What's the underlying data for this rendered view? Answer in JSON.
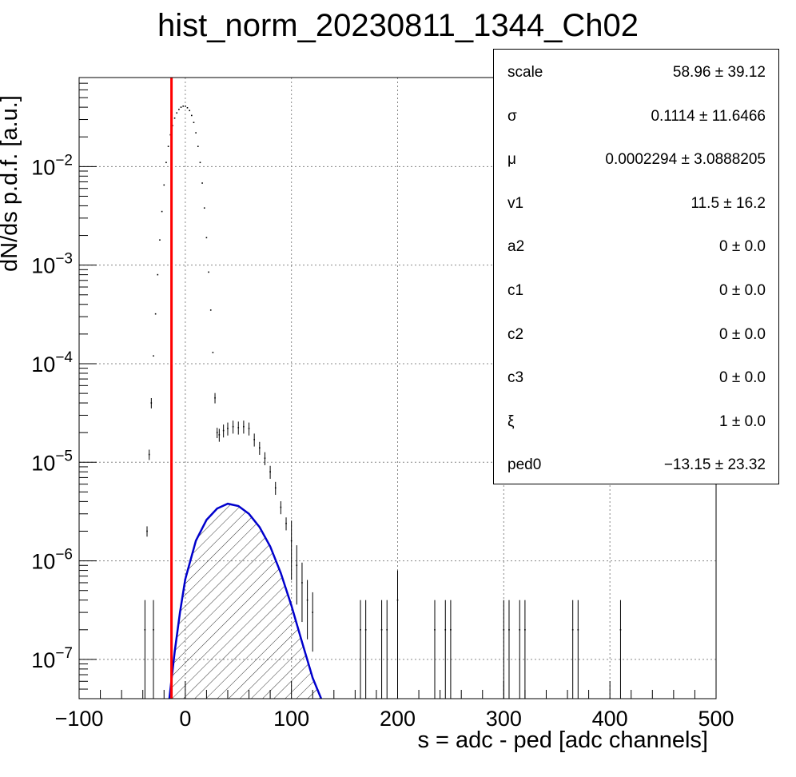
{
  "chart_data": {
    "type": "scatter",
    "title": "hist_norm_20230811_1344_Ch02",
    "xlabel": "s = adc - ped [adc channels]",
    "ylabel": "dN/ds p.d.f. [a.u.]",
    "xlim": [
      -100,
      500
    ],
    "ylim": [
      4e-08,
      0.08
    ],
    "yscale": "log",
    "grid": true,
    "x_ticks": [
      "−100",
      "0",
      "100",
      "200",
      "300",
      "400",
      "500"
    ],
    "y_ticks": [
      {
        "base": "10",
        "exp": "−7"
      },
      {
        "base": "10",
        "exp": "−6"
      },
      {
        "base": "10",
        "exp": "−5"
      },
      {
        "base": "10",
        "exp": "−4"
      },
      {
        "base": "10",
        "exp": "−3"
      },
      {
        "base": "10",
        "exp": "−2"
      }
    ],
    "series": [
      {
        "kind": "histogram",
        "color": "#000000",
        "pedestal_points": [
          [
            -36,
            2e-06
          ],
          [
            -34,
            1.2e-05
          ],
          [
            -32,
            4e-05
          ],
          [
            -30,
            0.00012
          ],
          [
            -28,
            0.00032
          ],
          [
            -26,
            0.0008
          ],
          [
            -24,
            0.0018
          ],
          [
            -22,
            0.0035
          ],
          [
            -20,
            0.0065
          ],
          [
            -18,
            0.011
          ],
          [
            -16,
            0.016
          ],
          [
            -14,
            0.021
          ],
          [
            -12,
            0.026
          ],
          [
            -10,
            0.031
          ],
          [
            -8,
            0.035
          ],
          [
            -6,
            0.038
          ],
          [
            -4,
            0.04
          ],
          [
            -2,
            0.041
          ],
          [
            0,
            0.041
          ],
          [
            2,
            0.0395
          ],
          [
            4,
            0.037
          ],
          [
            6,
            0.033
          ],
          [
            8,
            0.028
          ],
          [
            10,
            0.022
          ],
          [
            12,
            0.016
          ],
          [
            14,
            0.011
          ],
          [
            16,
            0.0068
          ],
          [
            18,
            0.0038
          ],
          [
            20,
            0.0019
          ],
          [
            22,
            0.00085
          ],
          [
            24,
            0.00035
          ],
          [
            26,
            0.00013
          ],
          [
            28,
            4.5e-05
          ],
          [
            30,
            2e-05
          ]
        ],
        "shoulder_points": [
          [
            32,
            1.9e-05
          ],
          [
            36,
            2.1e-05
          ],
          [
            40,
            2.2e-05
          ],
          [
            45,
            2.3e-05
          ],
          [
            50,
            2.25e-05
          ],
          [
            55,
            2.3e-05
          ],
          [
            60,
            2.2e-05
          ],
          [
            65,
            1.7e-05
          ],
          [
            70,
            1.4e-05
          ],
          [
            75,
            1.1e-05
          ],
          [
            80,
            8e-06
          ],
          [
            85,
            5.5e-06
          ],
          [
            90,
            3.5e-06
          ],
          [
            95,
            2.4e-06
          ],
          [
            100,
            1.6e-06
          ],
          [
            105,
            9e-07
          ],
          [
            110,
            6e-07
          ],
          [
            115,
            4e-07
          ],
          [
            120,
            3e-07
          ]
        ],
        "isolated_points": [
          [
            -38,
            2e-07
          ],
          [
            -30,
            2e-07
          ],
          [
            165,
            2e-07
          ],
          [
            170,
            2e-07
          ],
          [
            185,
            2e-07
          ],
          [
            190,
            2e-07
          ],
          [
            200,
            4e-07
          ],
          [
            235,
            2e-07
          ],
          [
            245,
            2e-07
          ],
          [
            250,
            2e-07
          ],
          [
            300,
            2e-07
          ],
          [
            305,
            2e-07
          ],
          [
            315,
            2e-07
          ],
          [
            320,
            2e-07
          ],
          [
            365,
            2e-07
          ],
          [
            370,
            2e-07
          ],
          [
            410,
            2e-07
          ]
        ]
      },
      {
        "kind": "line",
        "color": "#ff0000",
        "points": [
          [
            -13,
            4e-08
          ],
          [
            -13,
            0.08
          ]
        ]
      },
      {
        "kind": "hatched-area",
        "color": "#0000cc",
        "points": [
          [
            -15,
            4e-08
          ],
          [
            -10,
            1.2e-07
          ],
          [
            -5,
            3e-07
          ],
          [
            0,
            6.5e-07
          ],
          [
            10,
            1.6e-06
          ],
          [
            20,
            2.6e-06
          ],
          [
            30,
            3.4e-06
          ],
          [
            40,
            3.8e-06
          ],
          [
            50,
            3.6e-06
          ],
          [
            60,
            3e-06
          ],
          [
            70,
            2.2e-06
          ],
          [
            80,
            1.4e-06
          ],
          [
            90,
            7.5e-07
          ],
          [
            100,
            3.5e-07
          ],
          [
            110,
            1.5e-07
          ],
          [
            120,
            6.5e-08
          ],
          [
            128,
            4e-08
          ]
        ]
      }
    ]
  },
  "stats": [
    {
      "name": "scale",
      "value": "58.96 ± 39.12"
    },
    {
      "name": "σ",
      "value": "0.1114 ± 11.6466"
    },
    {
      "name": "μ",
      "value": "0.0002294 ± 3.0888205"
    },
    {
      "name": "v1",
      "value": "11.5 ± 16.2"
    },
    {
      "name": "a2",
      "value": "0 ± 0.0"
    },
    {
      "name": "c1",
      "value": "0 ± 0.0"
    },
    {
      "name": "c2",
      "value": "0 ± 0.0"
    },
    {
      "name": "c3",
      "value": "0 ± 0.0"
    },
    {
      "name": "ξ",
      "value": "1 ± 0.0"
    },
    {
      "name": "ped0",
      "value": "−13.15 ± 23.32"
    }
  ]
}
